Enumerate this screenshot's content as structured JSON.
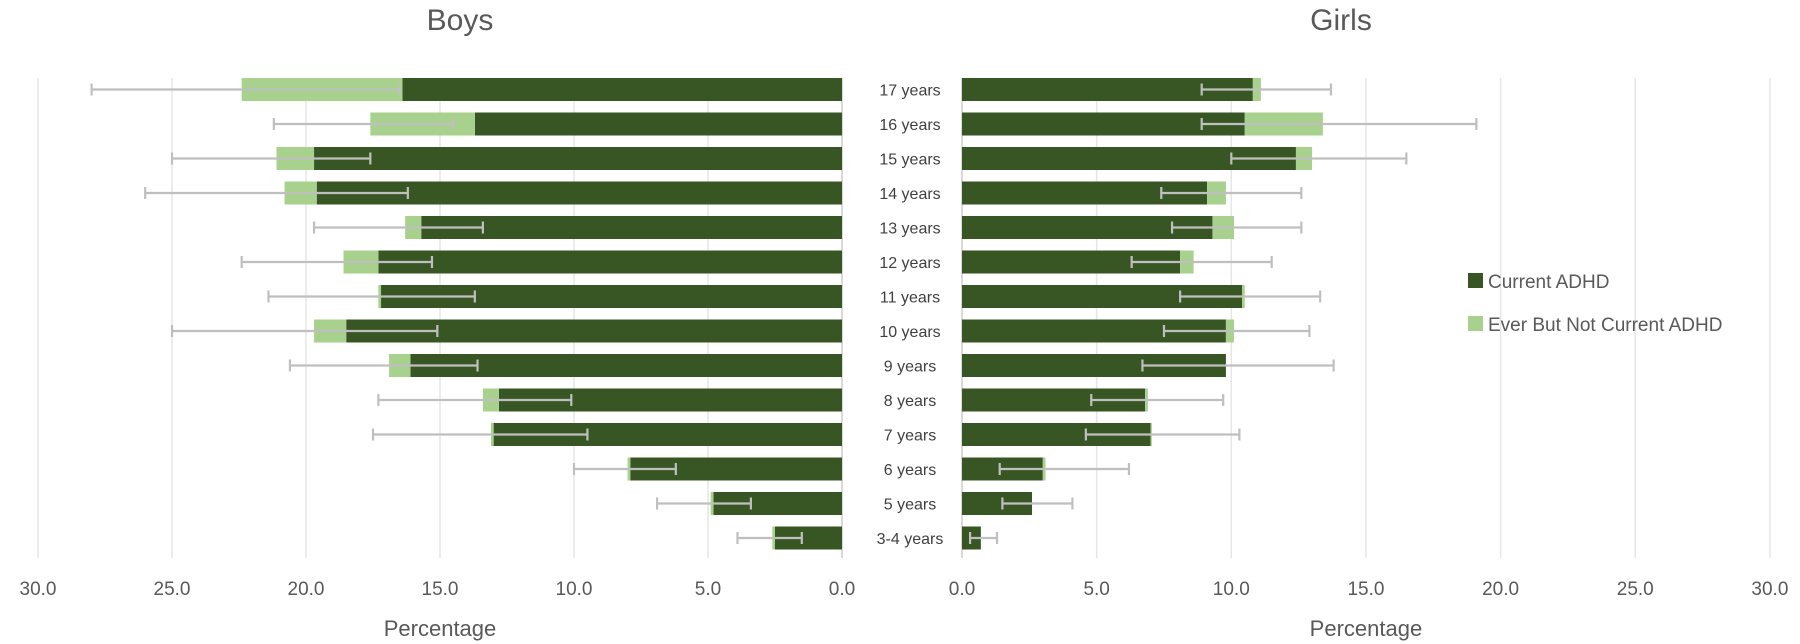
{
  "chart_data": {
    "type": "bar",
    "orientation": "horizontal",
    "stacked": true,
    "categories": [
      "17 years",
      "16 years",
      "15 years",
      "14 years",
      "13 years",
      "12 years",
      "11 years",
      "10 years",
      "9 years",
      "8 years",
      "7 years",
      "6 years",
      "5 years",
      "3-4 years"
    ],
    "xlim": [
      0,
      30
    ],
    "xticks": [
      "0.0",
      "5.0",
      "10.0",
      "15.0",
      "20.0",
      "25.0",
      "30.0"
    ],
    "legend": {
      "position": "right",
      "entries": [
        "Current ADHD",
        "Ever But Not Current ADHD"
      ]
    },
    "colors": {
      "current": "#375623",
      "ever": "#a9d18e",
      "error_bar": "#bfbfbf",
      "grid": "#e6e6e6"
    },
    "grid": true,
    "panels": [
      {
        "title": "Boys",
        "xlabel": "Percentage",
        "direction": "reversed",
        "series": [
          {
            "name": "Current ADHD",
            "values": [
              16.4,
              13.7,
              19.7,
              19.6,
              15.7,
              17.3,
              17.2,
              18.5,
              16.1,
              12.8,
              13.0,
              7.9,
              4.8,
              2.5
            ]
          },
          {
            "name": "Ever But Not Current ADHD",
            "values": [
              6.0,
              3.9,
              1.4,
              1.2,
              0.6,
              1.3,
              0.1,
              1.2,
              0.8,
              0.6,
              0.1,
              0.1,
              0.1,
              0.1
            ]
          }
        ],
        "error_bars": [
          [
            16.5,
            28.0
          ],
          [
            14.5,
            21.2
          ],
          [
            17.6,
            25.0
          ],
          [
            16.2,
            26.0
          ],
          [
            13.4,
            19.7
          ],
          [
            15.3,
            22.4
          ],
          [
            13.7,
            21.4
          ],
          [
            15.1,
            25.0
          ],
          [
            13.6,
            20.6
          ],
          [
            10.1,
            17.3
          ],
          [
            9.5,
            17.5
          ],
          [
            6.2,
            10.0
          ],
          [
            3.4,
            6.9
          ],
          [
            1.5,
            3.9
          ]
        ]
      },
      {
        "title": "Girls",
        "xlabel": "Percentage",
        "direction": "normal",
        "series": [
          {
            "name": "Current ADHD",
            "values": [
              10.8,
              10.5,
              12.4,
              9.1,
              9.3,
              8.1,
              10.4,
              9.8,
              9.8,
              6.8,
              7.0,
              3.0,
              2.6,
              0.7
            ]
          },
          {
            "name": "Ever But Not Current ADHD",
            "values": [
              0.3,
              2.9,
              0.6,
              0.7,
              0.8,
              0.5,
              0.1,
              0.3,
              0.0,
              0.1,
              0.05,
              0.1,
              0.0,
              0.0
            ]
          }
        ],
        "error_bars": [
          [
            8.9,
            13.7
          ],
          [
            8.9,
            19.1
          ],
          [
            10.0,
            16.5
          ],
          [
            7.4,
            12.6
          ],
          [
            7.8,
            12.6
          ],
          [
            6.3,
            11.5
          ],
          [
            8.1,
            13.3
          ],
          [
            7.5,
            12.9
          ],
          [
            6.7,
            13.8
          ],
          [
            4.8,
            9.7
          ],
          [
            4.6,
            10.3
          ],
          [
            1.4,
            6.2
          ],
          [
            1.5,
            4.1
          ],
          [
            0.3,
            1.3
          ]
        ]
      }
    ]
  }
}
